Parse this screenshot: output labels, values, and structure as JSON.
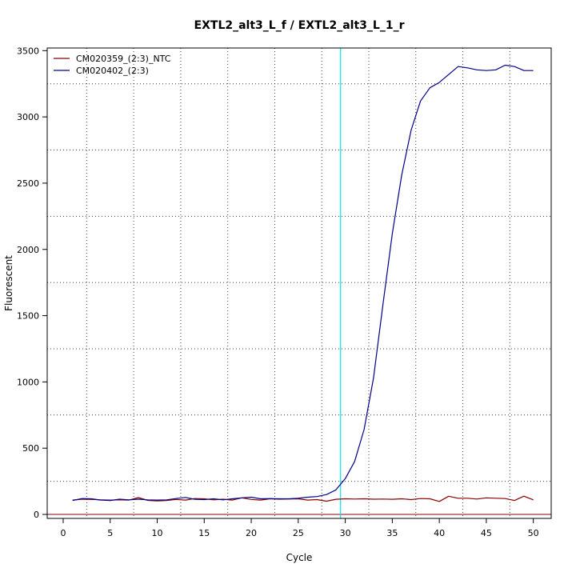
{
  "chart_data": {
    "type": "line",
    "title": "EXTL2_alt3_L_f / EXTL2_alt3_L_1_r",
    "xlabel": "Cycle",
    "ylabel": "Fluorescent",
    "xlim": [
      -1.7,
      51.9
    ],
    "ylim": [
      -30,
      3520
    ],
    "xticks": [
      0,
      5,
      10,
      15,
      20,
      25,
      30,
      35,
      40,
      45,
      50
    ],
    "yticks": [
      0,
      500,
      1000,
      1500,
      2000,
      2500,
      3000,
      3500
    ],
    "grid": true,
    "grid_style": "dotted",
    "legend_position": "top-left",
    "threshold": {
      "x": 29.5,
      "color": "#00e5ee"
    },
    "baseline": {
      "y": 0,
      "color": "#8b0000"
    },
    "x": [
      1,
      2,
      3,
      4,
      5,
      6,
      7,
      8,
      9,
      10,
      11,
      12,
      13,
      14,
      15,
      16,
      17,
      18,
      19,
      20,
      21,
      22,
      23,
      24,
      25,
      26,
      27,
      28,
      29,
      30,
      31,
      32,
      33,
      34,
      35,
      36,
      37,
      38,
      39,
      40,
      41,
      42,
      43,
      44,
      45,
      46,
      47,
      48,
      49,
      50
    ],
    "series": [
      {
        "name": "CM020359_(2:3)_NTC",
        "color": "#8b0000",
        "values": [
          108,
          115,
          113,
          110,
          108,
          110,
          108,
          127,
          106,
          102,
          105,
          113,
          108,
          120,
          118,
          110,
          115,
          108,
          125,
          113,
          108,
          118,
          115,
          116,
          118,
          108,
          112,
          100,
          114,
          118,
          116,
          118,
          115,
          116,
          114,
          118,
          112,
          120,
          118,
          98,
          137,
          122,
          122,
          116,
          125,
          122,
          120,
          105,
          138,
          110
        ]
      },
      {
        "name": "CM020402_(2:3)",
        "color": "#00008b",
        "values": [
          105,
          120,
          118,
          108,
          105,
          115,
          110,
          115,
          110,
          108,
          110,
          120,
          128,
          114,
          112,
          118,
          110,
          118,
          125,
          130,
          118,
          120,
          118,
          118,
          122,
          130,
          135,
          150,
          185,
          270,
          400,
          640,
          1030,
          1580,
          2120,
          2560,
          2900,
          3120,
          3220,
          3260,
          3320,
          3380,
          3370,
          3355,
          3350,
          3355,
          3390,
          3380,
          3350,
          3350
        ]
      }
    ]
  }
}
